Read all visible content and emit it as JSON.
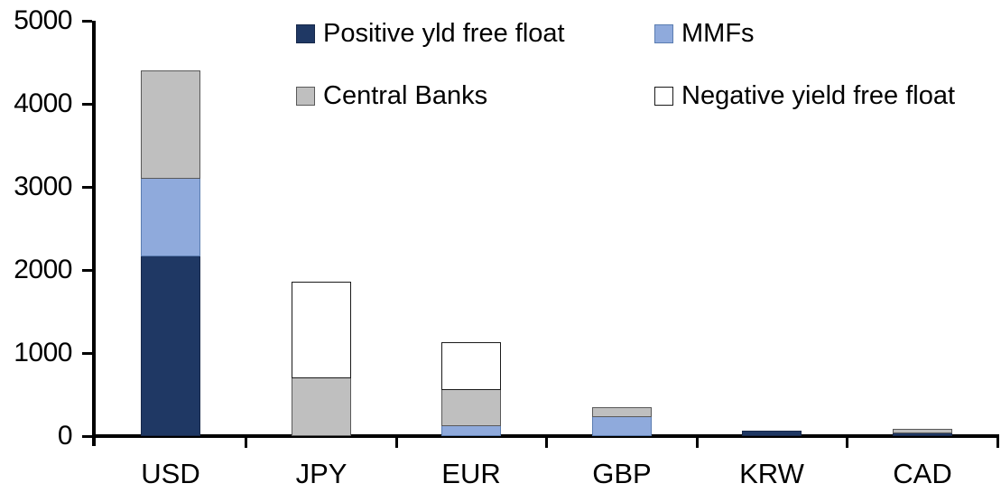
{
  "chart_data": {
    "type": "bar",
    "stacked": true,
    "title": "",
    "xlabel": "",
    "ylabel": "",
    "grid": false,
    "legend_position": "top",
    "ylim": [
      0,
      5000
    ],
    "yticks": [
      0,
      1000,
      2000,
      3000,
      4000,
      5000
    ],
    "ytick_labels": [
      "0",
      "1000",
      "2000",
      "3000",
      "4000",
      "5000"
    ],
    "categories": [
      "USD",
      "JPY",
      "EUR",
      "GBP",
      "KRW",
      "CAD"
    ],
    "series": [
      {
        "name": "Positive yld free float",
        "color": "#1F3864",
        "border": "#17284a",
        "values": [
          2170,
          0,
          0,
          0,
          55,
          40
        ]
      },
      {
        "name": "MMFs",
        "color": "#8FAADC",
        "border": "#5B7DB1",
        "values": [
          930,
          0,
          115,
          230,
          0,
          0
        ]
      },
      {
        "name": "Central Banks",
        "color": "#BFBFBF",
        "border": "#595959",
        "values": [
          1290,
          700,
          435,
          110,
          0,
          40
        ]
      },
      {
        "name": "Negative yield free float",
        "color": "#FFFFFF",
        "border": "#1a1a1a",
        "values": [
          0,
          1150,
          570,
          0,
          0,
          0
        ]
      }
    ],
    "totals": [
      4390,
      1850,
      1120,
      340,
      55,
      80
    ],
    "axis_color": "#000000",
    "background_color": "#FFFFFF"
  }
}
